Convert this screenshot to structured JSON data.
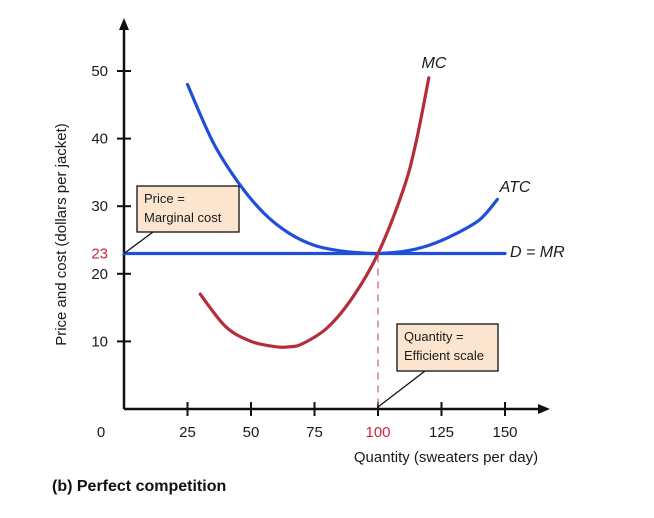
{
  "chart_data": {
    "type": "line",
    "caption": "(b) Perfect competition",
    "xlabel": "Quantity (sweaters per day)",
    "ylabel": "Price and cost (dollars per jacket)",
    "origin_label": "0",
    "xlim": [
      0,
      170
    ],
    "ylim": [
      0,
      55
    ],
    "x_ticks": [
      "25",
      "50",
      "75",
      "100",
      "125",
      "150"
    ],
    "y_ticks": [
      "10",
      "20",
      "30",
      "40",
      "50"
    ],
    "highlight_x": {
      "value": 100,
      "label": "100",
      "color": "#c8283c"
    },
    "highlight_y": {
      "value": 23,
      "label": "23",
      "color": "#c8283c"
    },
    "series": [
      {
        "name": "MC",
        "color": "#b52d3a",
        "x": [
          30,
          40,
          50,
          60,
          65,
          70,
          80,
          90,
          100,
          110,
          115,
          120
        ],
        "y": [
          17,
          12.2,
          10,
          9.2,
          9.2,
          9.6,
          12,
          16.5,
          23,
          32.5,
          39.5,
          49
        ]
      },
      {
        "name": "ATC",
        "color": "#1f4fd8",
        "x": [
          25,
          35,
          45,
          55,
          65,
          75,
          85,
          95,
          100,
          110,
          120,
          130,
          140,
          147
        ],
        "y": [
          48,
          39.5,
          33.5,
          29,
          26,
          24.2,
          23.4,
          23.05,
          23,
          23.3,
          24.2,
          25.8,
          28,
          31
        ]
      },
      {
        "name": "D = MR",
        "color": "#1f4fd8",
        "x": [
          0,
          150
        ],
        "y": [
          23,
          23
        ]
      }
    ],
    "annotations": [
      {
        "id": "price",
        "lines": [
          "Price =",
          "Marginal cost"
        ],
        "points_to": [
          0,
          23
        ]
      },
      {
        "id": "quantity",
        "lines": [
          "Quantity =",
          "Efficient scale"
        ],
        "points_to": [
          100,
          0
        ]
      }
    ]
  }
}
